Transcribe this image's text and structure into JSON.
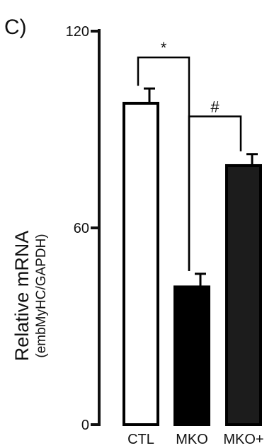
{
  "panel_label": "C)",
  "chart_data": {
    "type": "bar",
    "categories": [
      "CTL",
      "MKO",
      "MKO+"
    ],
    "values": [
      98,
      42,
      79
    ],
    "errors": [
      4.5,
      4,
      3.5
    ],
    "ylabel": "Relative mRNA",
    "ylabel_sub": "(embMyHC/GAPDH)",
    "ylim": [
      0,
      120
    ],
    "yticks": [
      0,
      60,
      120
    ],
    "ytick_labels": [
      "0",
      "60",
      "120"
    ],
    "grid": false,
    "bar_fills": [
      "#ffffff",
      "#000000",
      "#1c1c1c"
    ],
    "significance": [
      {
        "from": 0,
        "to": 1,
        "symbol": "*"
      },
      {
        "from": 1,
        "to": 2,
        "symbol": "#"
      }
    ]
  }
}
